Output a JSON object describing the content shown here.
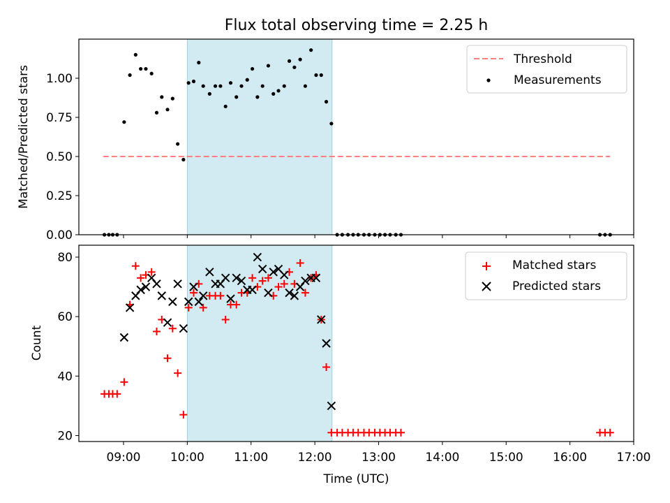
{
  "title": "Flux total observing time = 2.25 h",
  "chart_data": [
    {
      "type": "scatter",
      "panel": "top",
      "ylabel": "Matched/Predicted stars",
      "xlabel": "",
      "ylim": [
        0,
        1.25
      ],
      "yticks": [
        0.0,
        0.25,
        0.5,
        0.75,
        1.0
      ],
      "ytick_labels": [
        "0.00",
        "0.25",
        "0.50",
        "0.75",
        "1.00"
      ],
      "xlim_hours": [
        8.3,
        17.0
      ],
      "shaded_region_hours": [
        10.0,
        12.27
      ],
      "shaded_color": "#add8e6",
      "threshold": {
        "name": "Threshold",
        "value": 0.5,
        "x_range_hours": [
          8.68,
          16.63
        ],
        "color": "#ff7f7f"
      },
      "legend": [
        "Threshold",
        "Measurements"
      ],
      "legend_position": "top-right",
      "series": [
        {
          "name": "Measurements",
          "color": "#000000",
          "marker": "dot",
          "x": [
            8.7,
            8.77,
            8.83,
            8.9,
            9.01,
            9.1,
            9.19,
            9.27,
            9.35,
            9.44,
            9.52,
            9.6,
            9.69,
            9.77,
            9.85,
            9.94,
            10.02,
            10.1,
            10.18,
            10.25,
            10.35,
            10.44,
            10.52,
            10.6,
            10.68,
            10.77,
            10.85,
            10.94,
            11.02,
            11.1,
            11.18,
            11.27,
            11.35,
            11.43,
            11.52,
            11.6,
            11.68,
            11.77,
            11.85,
            11.94,
            12.02,
            12.1,
            12.18,
            12.26,
            12.35,
            12.43,
            12.52,
            12.6,
            12.68,
            12.77,
            12.85,
            12.94,
            13.02,
            13.1,
            13.18,
            13.27,
            13.35,
            16.47,
            16.55,
            16.63
          ],
          "y": [
            0,
            0,
            0,
            0,
            0.72,
            1.02,
            1.15,
            1.06,
            1.06,
            1.03,
            0.78,
            0.88,
            0.8,
            0.87,
            0.58,
            0.48,
            0.97,
            0.98,
            1.1,
            0.95,
            0.9,
            0.95,
            0.95,
            0.82,
            0.97,
            0.88,
            0.95,
            0.99,
            1.06,
            0.88,
            0.95,
            1.08,
            0.9,
            0.92,
            0.95,
            1.11,
            1.07,
            1.12,
            0.95,
            1.18,
            1.02,
            1.02,
            0.85,
            0.71,
            0,
            0,
            0,
            0,
            0,
            0,
            0,
            0,
            0,
            0,
            0,
            0,
            0,
            0,
            0,
            0
          ]
        }
      ]
    },
    {
      "type": "scatter",
      "panel": "bottom",
      "ylabel": "Count",
      "xlabel": "Time (UTC)",
      "ylim": [
        18,
        84
      ],
      "yticks": [
        20,
        40,
        60,
        80
      ],
      "xlim_hours": [
        8.3,
        17.0
      ],
      "xticks_hours": [
        9,
        10,
        11,
        12,
        13,
        14,
        15,
        16,
        17
      ],
      "xtick_labels": [
        "09:00",
        "10:00",
        "11:00",
        "12:00",
        "13:00",
        "14:00",
        "15:00",
        "16:00",
        "17:00"
      ],
      "shaded_region_hours": [
        10.0,
        12.27
      ],
      "shaded_color": "#add8e6",
      "legend_position": "top-right",
      "series": [
        {
          "name": "Matched stars",
          "color": "#ff0000",
          "marker": "plus",
          "x": [
            8.7,
            8.77,
            8.83,
            8.9,
            9.01,
            9.1,
            9.19,
            9.27,
            9.35,
            9.44,
            9.52,
            9.6,
            9.69,
            9.77,
            9.85,
            9.94,
            10.02,
            10.1,
            10.18,
            10.25,
            10.35,
            10.44,
            10.52,
            10.6,
            10.68,
            10.77,
            10.85,
            10.94,
            11.02,
            11.1,
            11.18,
            11.27,
            11.35,
            11.43,
            11.52,
            11.6,
            11.68,
            11.77,
            11.85,
            11.94,
            12.02,
            12.1,
            12.18,
            12.26,
            12.35,
            12.43,
            12.52,
            12.6,
            12.68,
            12.77,
            12.85,
            12.94,
            13.02,
            13.1,
            13.18,
            13.27,
            13.35,
            16.47,
            16.55,
            16.63
          ],
          "y": [
            34,
            34,
            34,
            34,
            38,
            64,
            77,
            73,
            74,
            75,
            55,
            59,
            46,
            56,
            41,
            27,
            63,
            68,
            71,
            63,
            67,
            67,
            67,
            59,
            64,
            64,
            68,
            68,
            73,
            70,
            72,
            73,
            67,
            70,
            71,
            75,
            71,
            78,
            68,
            73,
            74,
            59,
            43,
            21,
            21,
            21,
            21,
            21,
            21,
            21,
            21,
            21,
            21,
            21,
            21,
            21,
            21,
            21,
            21,
            21
          ]
        },
        {
          "name": "Predicted stars",
          "color": "#000000",
          "marker": "x",
          "x": [
            9.01,
            9.1,
            9.19,
            9.27,
            9.35,
            9.44,
            9.52,
            9.6,
            9.69,
            9.77,
            9.85,
            9.94,
            10.02,
            10.1,
            10.18,
            10.25,
            10.35,
            10.44,
            10.52,
            10.6,
            10.68,
            10.77,
            10.85,
            10.94,
            11.02,
            11.1,
            11.18,
            11.27,
            11.35,
            11.43,
            11.52,
            11.6,
            11.68,
            11.77,
            11.85,
            11.94,
            12.02,
            12.1,
            12.18,
            12.26
          ],
          "y": [
            53,
            63,
            67,
            69,
            70,
            73,
            71,
            67,
            58,
            65,
            71,
            56,
            65,
            70,
            65,
            67,
            75,
            71,
            71,
            73,
            66,
            73,
            72,
            69,
            69,
            80,
            76,
            68,
            75,
            76,
            74,
            68,
            67,
            70,
            72,
            73,
            73,
            59,
            51,
            30
          ]
        }
      ]
    }
  ]
}
